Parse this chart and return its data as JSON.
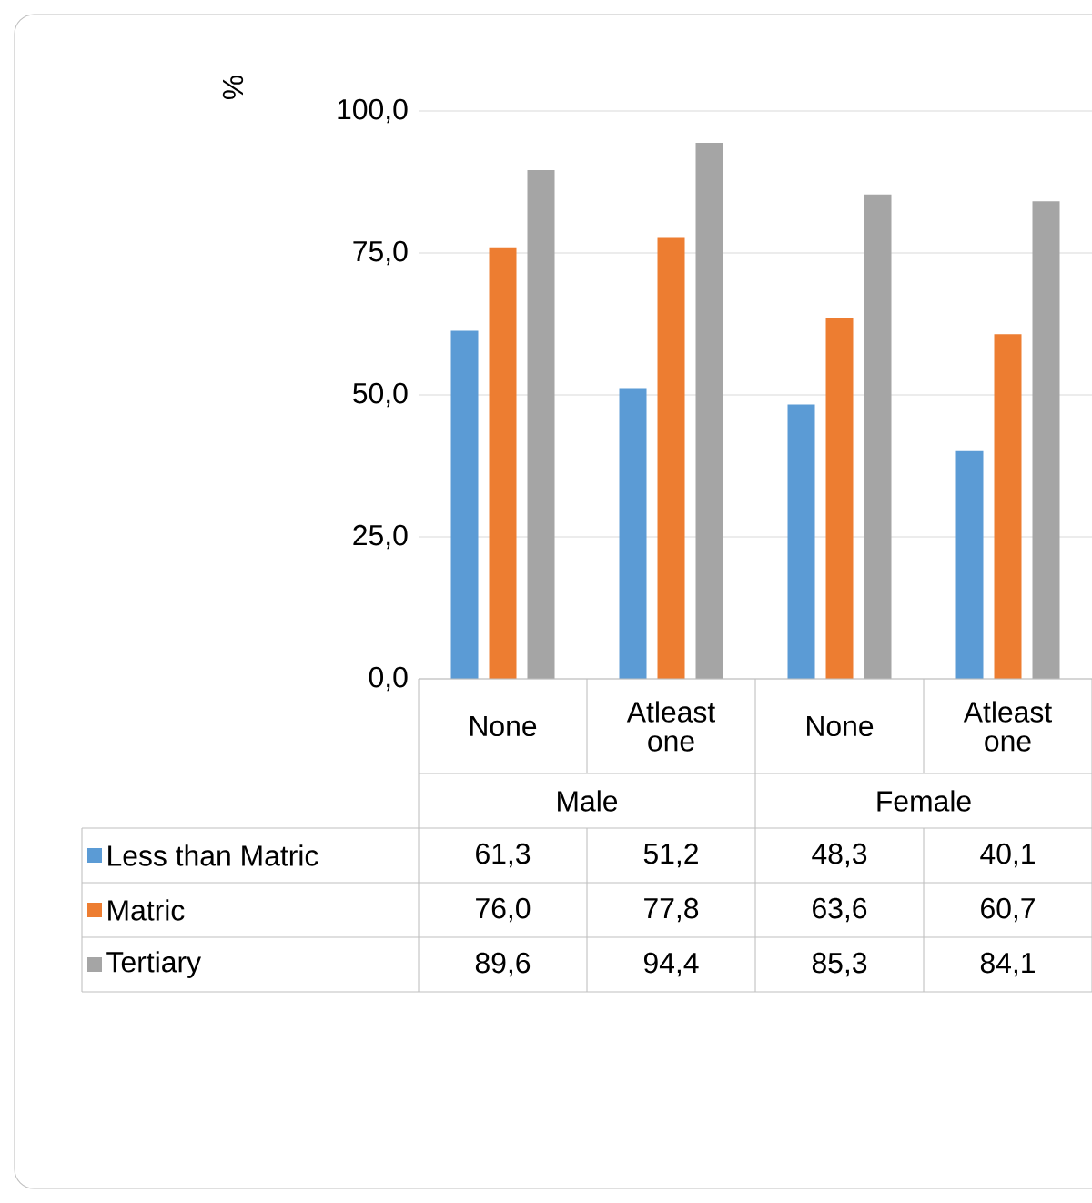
{
  "chart_data": {
    "type": "bar",
    "ylabel": "%",
    "categories": [
      "None",
      "Atleast one",
      "None",
      "Atleast one"
    ],
    "annotations": [
      "Male",
      "Female"
    ],
    "series": [
      {
        "name": "Less than Matric",
        "color": "#5b9bd5",
        "values": [
          61.3,
          51.2,
          48.3,
          40.1
        ],
        "value_labels": [
          "61,3",
          "51,2",
          "48,3",
          "40,1"
        ]
      },
      {
        "name": "Matric",
        "color": "#ed7d31",
        "values": [
          76.0,
          77.8,
          63.6,
          60.7
        ],
        "value_labels": [
          "76,0",
          "77,8",
          "63,6",
          "60,7"
        ]
      },
      {
        "name": "Tertiary",
        "color": "#a5a5a5",
        "values": [
          89.6,
          94.4,
          85.3,
          84.1
        ],
        "value_labels": [
          "89,6",
          "94,4",
          "85,3",
          "84,1"
        ]
      }
    ],
    "ylim": [
      0,
      100
    ],
    "yticks": [
      {
        "value": 0,
        "label": "0,0"
      },
      {
        "value": 25,
        "label": "25,0"
      },
      {
        "value": 50,
        "label": "50,0"
      },
      {
        "value": 75,
        "label": "75,0"
      },
      {
        "value": 100,
        "label": "100,0"
      }
    ],
    "grid": "y",
    "legend": "bottom left"
  }
}
